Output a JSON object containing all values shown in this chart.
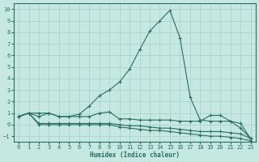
{
  "xlabel": "Humidex (Indice chaleur)",
  "xlim": [
    -0.5,
    23.5
  ],
  "ylim": [
    -1.5,
    10.5
  ],
  "xticks": [
    0,
    1,
    2,
    3,
    4,
    5,
    6,
    7,
    8,
    9,
    10,
    11,
    12,
    13,
    14,
    15,
    16,
    17,
    18,
    19,
    20,
    21,
    22,
    23
  ],
  "yticks": [
    -1,
    0,
    1,
    2,
    3,
    4,
    5,
    6,
    7,
    8,
    9,
    10
  ],
  "background_color": "#c5e8e0",
  "grid_color": "#a8d0c8",
  "line_color": "#2a6e62",
  "series": [
    {
      "x": [
        0,
        1,
        2,
        3,
        4,
        5,
        6,
        7,
        8,
        9,
        10,
        11,
        12,
        13,
        14,
        15,
        16,
        17,
        18,
        19,
        20,
        21,
        22,
        23
      ],
      "y": [
        0.7,
        1.0,
        1.0,
        1.0,
        0.7,
        0.7,
        0.9,
        1.6,
        2.5,
        3.0,
        3.7,
        4.8,
        6.5,
        8.1,
        9.0,
        9.9,
        7.5,
        2.4,
        0.4,
        0.3,
        0.3,
        0.3,
        -0.3,
        -1.2
      ]
    },
    {
      "x": [
        0,
        1,
        2,
        3,
        4,
        5,
        6,
        7,
        8,
        9,
        10,
        11,
        12,
        13,
        14,
        15,
        16,
        17,
        18,
        19,
        20,
        21,
        22,
        23
      ],
      "y": [
        0.7,
        1.0,
        0.7,
        1.0,
        0.7,
        0.7,
        0.7,
        0.7,
        1.0,
        1.1,
        0.5,
        0.5,
        0.4,
        0.4,
        0.4,
        0.4,
        0.3,
        0.3,
        0.3,
        0.8,
        0.8,
        0.3,
        0.1,
        -1.2
      ]
    },
    {
      "x": [
        0,
        1,
        2,
        3,
        4,
        5,
        6,
        7,
        8,
        9,
        10,
        11,
        12,
        13,
        14,
        15,
        16,
        17,
        18,
        19,
        20,
        21,
        22,
        23
      ],
      "y": [
        0.7,
        1.0,
        0.1,
        0.1,
        0.1,
        0.1,
        0.1,
        0.1,
        0.1,
        0.1,
        0.0,
        -0.1,
        -0.1,
        -0.2,
        -0.3,
        -0.3,
        -0.4,
        -0.5,
        -0.6,
        -0.6,
        -0.6,
        -0.7,
        -0.8,
        -1.2
      ]
    },
    {
      "x": [
        0,
        1,
        2,
        3,
        4,
        5,
        6,
        7,
        8,
        9,
        10,
        11,
        12,
        13,
        14,
        15,
        16,
        17,
        18,
        19,
        20,
        21,
        22,
        23
      ],
      "y": [
        0.7,
        1.0,
        0.0,
        0.0,
        0.0,
        0.0,
        0.0,
        0.0,
        0.0,
        0.0,
        -0.2,
        -0.3,
        -0.4,
        -0.5,
        -0.5,
        -0.6,
        -0.7,
        -0.8,
        -0.9,
        -1.0,
        -1.0,
        -1.1,
        -1.2,
        -1.4
      ]
    }
  ]
}
